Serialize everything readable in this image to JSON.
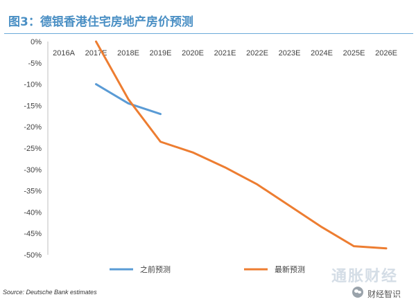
{
  "header": {
    "title": "图3：德银香港住宅房地产房价预测"
  },
  "footer": {
    "source": "Source: Deutsche Bank estimates",
    "watermark": "通胀财经",
    "account": "财经智识"
  },
  "colors": {
    "title": "#4a8fc4",
    "series_prev": "#5a9bd5",
    "series_new": "#ed7d31",
    "axis_text": "#404040",
    "gridline": "#bfbfbf"
  },
  "chart_data": {
    "type": "line",
    "categories": [
      "2016A",
      "2017E",
      "2018E",
      "2019E",
      "2020E",
      "2021E",
      "2022E",
      "2023E",
      "2024E",
      "2025E",
      "2026E"
    ],
    "series": [
      {
        "name": "之前预测",
        "color": "#5a9bd5",
        "values": [
          null,
          -10,
          -14.5,
          -17,
          null,
          null,
          null,
          null,
          null,
          null,
          null
        ]
      },
      {
        "name": "最新预测",
        "color": "#ed7d31",
        "values": [
          null,
          0,
          -13.5,
          -23.5,
          -26,
          -29.5,
          -33.5,
          -38.5,
          -43.5,
          -48,
          -48.5
        ]
      }
    ],
    "ylim": [
      -50,
      0
    ],
    "yticks": [
      0,
      -5,
      -10,
      -15,
      -20,
      -25,
      -30,
      -35,
      -40,
      -45,
      -50
    ],
    "ytick_labels": [
      "0%",
      "-5%",
      "-10%",
      "-15%",
      "-20%",
      "-25%",
      "-30%",
      "-35%",
      "-40%",
      "-45%",
      "-50%"
    ],
    "category_labels_position": "top",
    "legend_position": "bottom",
    "grid": false
  }
}
